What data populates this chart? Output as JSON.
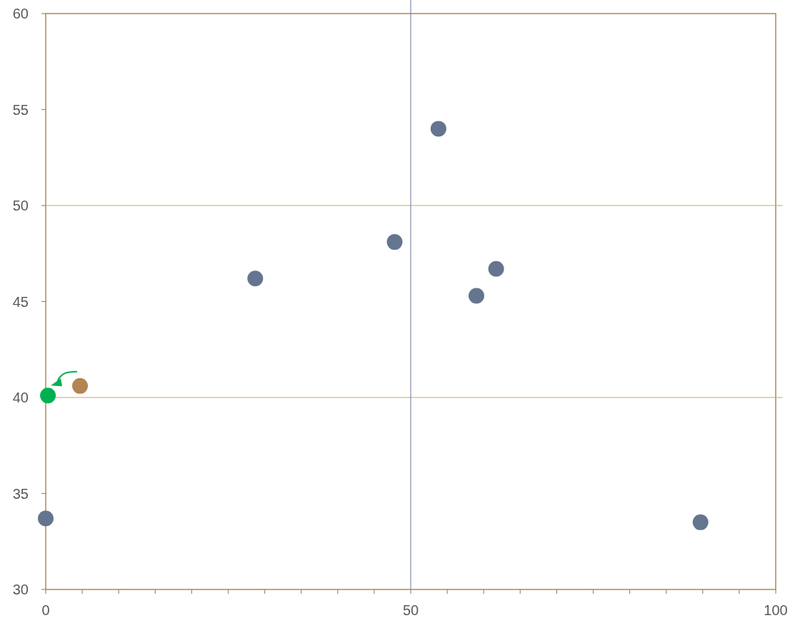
{
  "chart_data": {
    "type": "scatter",
    "xlim": [
      0,
      100
    ],
    "ylim": [
      30,
      60
    ],
    "xticks": [
      0,
      {
        "value": 5,
        "label": null
      },
      {
        "value": 10,
        "label": null
      },
      {
        "value": 15,
        "label": null
      },
      {
        "value": 20,
        "label": null
      },
      {
        "value": 25,
        "label": null
      },
      {
        "value": 30,
        "label": null
      },
      {
        "value": 35,
        "label": null
      },
      {
        "value": 40,
        "label": null
      },
      {
        "value": 45,
        "label": null
      },
      50,
      {
        "value": 55,
        "label": null
      },
      {
        "value": 60,
        "label": null
      },
      {
        "value": 65,
        "label": null
      },
      {
        "value": 70,
        "label": null
      },
      {
        "value": 75,
        "label": null
      },
      {
        "value": 80,
        "label": null
      },
      {
        "value": 85,
        "label": null
      },
      {
        "value": 90,
        "label": null
      },
      {
        "value": 95,
        "label": null
      },
      100
    ],
    "yticks": [
      30,
      35,
      40,
      45,
      50,
      55,
      60
    ],
    "grid": false,
    "marker": "circle",
    "series": [
      {
        "color": "#65758f",
        "x": [
          0,
          28.7,
          47.8,
          53.8,
          59.0,
          61.7,
          89.7
        ],
        "values": [
          33.7,
          46.2,
          48.1,
          54.0,
          45.3,
          46.7,
          33.5
        ]
      },
      {
        "color": "#b38552",
        "x": [
          4.7
        ],
        "values": [
          40.6
        ]
      },
      {
        "color": "#00b050",
        "x": [
          0.3
        ],
        "values": [
          40.1
        ]
      }
    ],
    "ref_lines": [
      {
        "axis": "y",
        "value": 50,
        "color": "#c4a57e"
      },
      {
        "axis": "y",
        "value": 40,
        "color": "#c4a57e"
      },
      {
        "axis": "x",
        "value": 50,
        "color": "#7f8aa3"
      }
    ]
  }
}
